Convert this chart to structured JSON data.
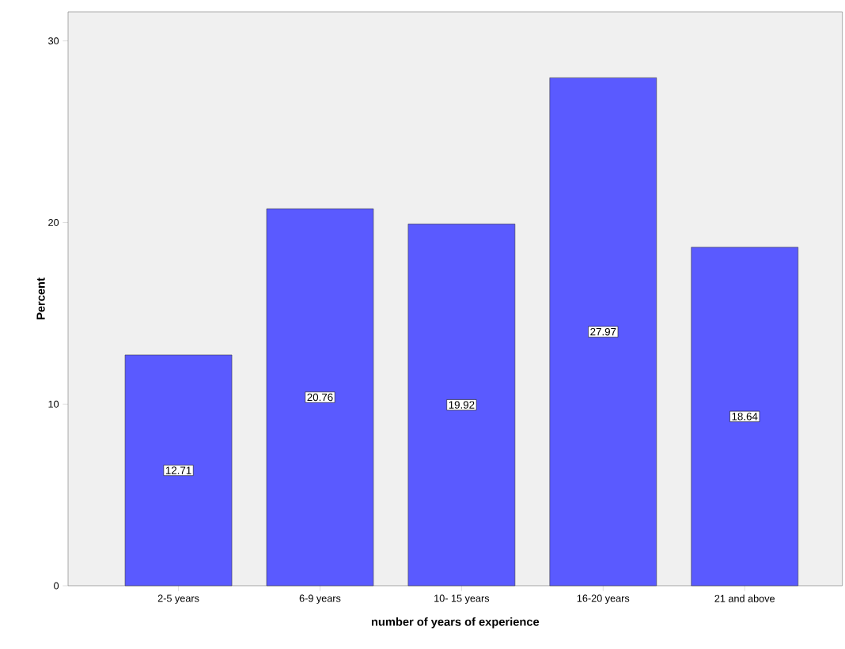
{
  "chart_data": {
    "type": "bar",
    "xlabel": "number of years of experience",
    "ylabel": "Percent",
    "categories": [
      "2-5 years",
      "6-9 years",
      "10- 15 years",
      "16-20 years",
      "21 and above"
    ],
    "values": [
      12.71,
      20.76,
      19.92,
      27.97,
      18.64
    ],
    "color": "#5a5aff",
    "ylim": [
      0,
      31.6
    ],
    "yticks": [
      0,
      10,
      20,
      30
    ],
    "data_labels": true
  }
}
